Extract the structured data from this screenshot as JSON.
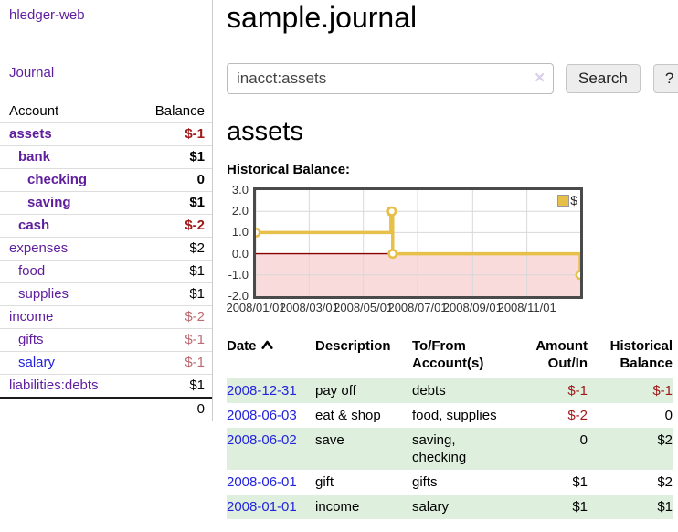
{
  "colors": {
    "link_purple": "#5f1e9e",
    "link_blue": "#2424dd",
    "negative_strong": "#a01818",
    "negative_muted": "#bd6a70",
    "row_green": "#def0dd",
    "chart_line": "#e7c04a",
    "chart_negative_bg": "#fadbdb",
    "chart_zero_line": "#8b0000",
    "chart_border": "#4a4a4a"
  },
  "sidebar": {
    "app_title": "hledger-web",
    "journal_link": "Journal",
    "table": {
      "headers": {
        "account": "Account",
        "balance": "Balance"
      },
      "rows": [
        {
          "name": "assets",
          "balance": "$-1",
          "indent": 0,
          "bold": true,
          "balance_color": "red-strong",
          "link_color": "purple"
        },
        {
          "name": "bank",
          "balance": "$1",
          "indent": 1,
          "bold": true,
          "balance_color": "black",
          "link_color": "purple"
        },
        {
          "name": "checking",
          "balance": "0",
          "indent": 2,
          "bold": true,
          "balance_color": "black",
          "link_color": "purple"
        },
        {
          "name": "saving",
          "balance": "$1",
          "indent": 2,
          "bold": true,
          "balance_color": "black",
          "link_color": "purple"
        },
        {
          "name": "cash",
          "balance": "$-2",
          "indent": 1,
          "bold": true,
          "balance_color": "red-strong",
          "link_color": "purple"
        },
        {
          "name": "expenses",
          "balance": "$2",
          "indent": 0,
          "bold": false,
          "balance_color": "black",
          "link_color": "purple"
        },
        {
          "name": "food",
          "balance": "$1",
          "indent": 1,
          "bold": false,
          "balance_color": "black",
          "link_color": "purple"
        },
        {
          "name": "supplies",
          "balance": "$1",
          "indent": 1,
          "bold": false,
          "balance_color": "black",
          "link_color": "purple"
        },
        {
          "name": "income",
          "balance": "$-2",
          "indent": 0,
          "bold": false,
          "balance_color": "red-muted",
          "link_color": "purple"
        },
        {
          "name": "gifts",
          "balance": "$-1",
          "indent": 1,
          "bold": false,
          "balance_color": "red-muted",
          "link_color": "purple"
        },
        {
          "name": "salary",
          "balance": "$-1",
          "indent": 1,
          "bold": false,
          "balance_color": "red-muted",
          "link_color": "blue"
        },
        {
          "name": "liabilities:debts",
          "balance": "$1",
          "indent": 0,
          "bold": false,
          "balance_color": "black",
          "link_color": "purple"
        }
      ],
      "total": "0"
    }
  },
  "main": {
    "title": "sample.journal",
    "search": {
      "value": "inacct:assets",
      "clear_icon": "✕",
      "button_label": "Search",
      "help_label": "?"
    },
    "account_heading": "assets",
    "chart_label": "Historical Balance:"
  },
  "chart_data": {
    "type": "line",
    "title": "Historical Balance",
    "step": true,
    "series": [
      {
        "name": "$",
        "points": [
          [
            "2008-01-01",
            1
          ],
          [
            "2008-06-01",
            2
          ],
          [
            "2008-06-02",
            2
          ],
          [
            "2008-06-03",
            0
          ],
          [
            "2008-12-31",
            -1
          ]
        ]
      }
    ],
    "x_range": [
      "2008-01-01",
      "2008-12-31"
    ],
    "ylim": [
      -2.0,
      3.0
    ],
    "yticks": [
      3.0,
      2.0,
      1.0,
      0.0,
      -1.0,
      -2.0
    ],
    "ytick_labels": [
      "3.0",
      "2.0",
      "1.0",
      "0.0",
      "-1.0",
      "-2.0"
    ],
    "xticks": [
      "2008/01/01",
      "2008/03/01",
      "2008/05/01",
      "2008/07/01",
      "2008/09/01",
      "2008/11/01"
    ],
    "legend_label": "$",
    "legend_position": "top-right",
    "grid": true
  },
  "register": {
    "headers": {
      "date": "Date",
      "description": "Description",
      "account": "To/From Account(s)",
      "amount": "Amount Out/In",
      "balance": "Historical Balance"
    },
    "sort_icon": "chevron-up",
    "rows": [
      {
        "date": "2008-12-31",
        "description": "pay off",
        "account": "debts",
        "amount": "$-1",
        "balance": "$-1",
        "amount_negative": true,
        "balance_negative": true
      },
      {
        "date": "2008-06-03",
        "description": "eat & shop",
        "account": "food, supplies",
        "amount": "$-2",
        "balance": "0",
        "amount_negative": true,
        "balance_negative": false
      },
      {
        "date": "2008-06-02",
        "description": "save",
        "account": "saving, checking",
        "amount": "0",
        "balance": "$2",
        "amount_negative": false,
        "balance_negative": false
      },
      {
        "date": "2008-06-01",
        "description": "gift",
        "account": "gifts",
        "amount": "$1",
        "balance": "$2",
        "amount_negative": false,
        "balance_negative": false
      },
      {
        "date": "2008-01-01",
        "description": "income",
        "account": "salary",
        "amount": "$1",
        "balance": "$1",
        "amount_negative": false,
        "balance_negative": false
      }
    ]
  }
}
